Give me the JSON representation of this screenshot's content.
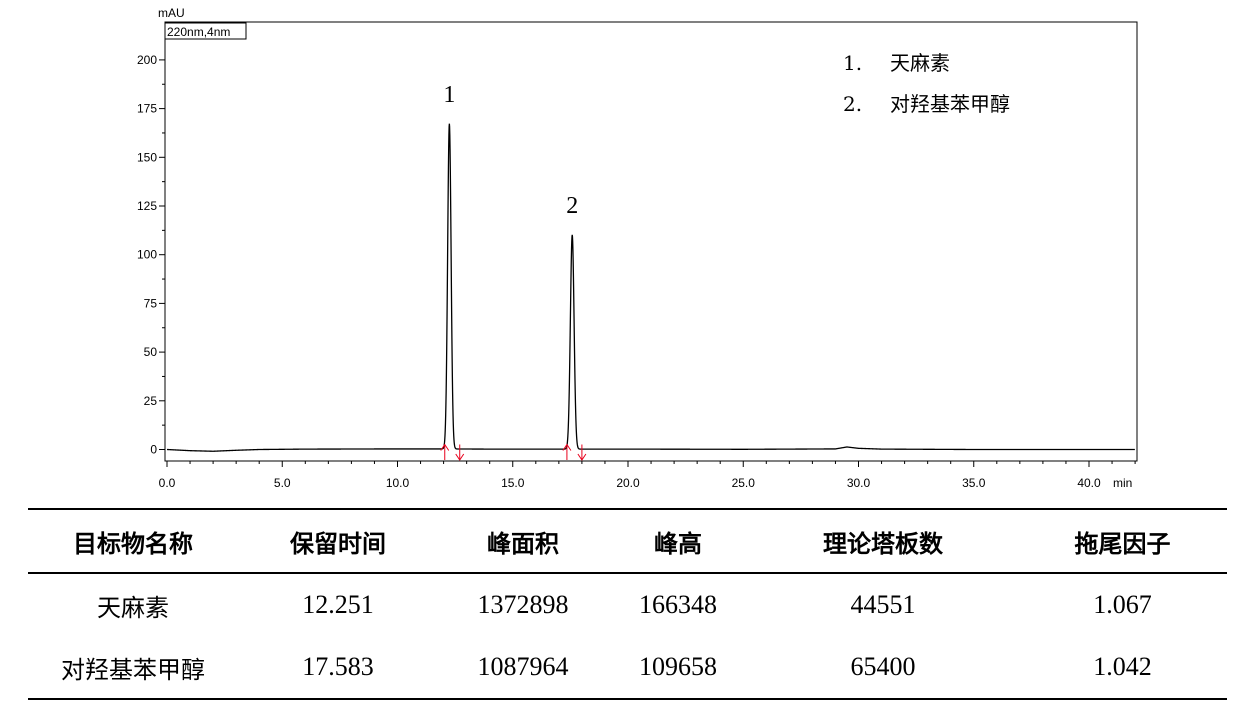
{
  "chart_data": {
    "type": "line",
    "y_unit": "mAU",
    "detector_label": "220nm,4nm",
    "x_unit": "min",
    "xlim": [
      0,
      42
    ],
    "ylim": [
      -5,
      225
    ],
    "x_ticks": [
      "0.0",
      "5.0",
      "10.0",
      "15.0",
      "20.0",
      "25.0",
      "30.0",
      "35.0",
      "40.0"
    ],
    "y_ticks": [
      "0",
      "25",
      "50",
      "75",
      "100",
      "125",
      "150",
      "175",
      "200"
    ],
    "grid": false,
    "peaks": [
      {
        "label": "1",
        "x": 12.25,
        "y": 167,
        "start": 12.05,
        "end": 12.7
      },
      {
        "label": "2",
        "x": 17.58,
        "y": 110,
        "start": 17.35,
        "end": 18.0
      }
    ],
    "baseline": [
      [
        0.0,
        0.0
      ],
      [
        1.0,
        -0.6
      ],
      [
        2.0,
        -0.9
      ],
      [
        3.0,
        -0.4
      ],
      [
        4.0,
        0.0
      ],
      [
        6.0,
        0.2
      ],
      [
        10.0,
        0.3
      ],
      [
        12.0,
        0.3
      ],
      [
        14.0,
        0.2
      ],
      [
        17.0,
        0.2
      ],
      [
        20.0,
        0.2
      ],
      [
        25.0,
        0.1
      ],
      [
        29.0,
        0.3
      ],
      [
        29.5,
        1.3
      ],
      [
        30.0,
        0.6
      ],
      [
        31.0,
        0.2
      ],
      [
        35.0,
        0.0
      ],
      [
        42.0,
        0.0
      ]
    ],
    "legend": [
      {
        "num": "1.",
        "name": "天麻素"
      },
      {
        "num": "2.",
        "name": "对羟基苯甲醇"
      }
    ]
  },
  "table": {
    "headers": [
      "目标物名称",
      "保留时间",
      "峰面积",
      "峰高",
      "理论塔板数",
      "拖尾因子"
    ],
    "rows": [
      [
        "天麻素",
        "12.251",
        "1372898",
        "166348",
        "44551",
        "1.067"
      ],
      [
        "对羟基苯甲醇",
        "17.583",
        "1087964",
        "109658",
        "65400",
        "1.042"
      ]
    ]
  }
}
